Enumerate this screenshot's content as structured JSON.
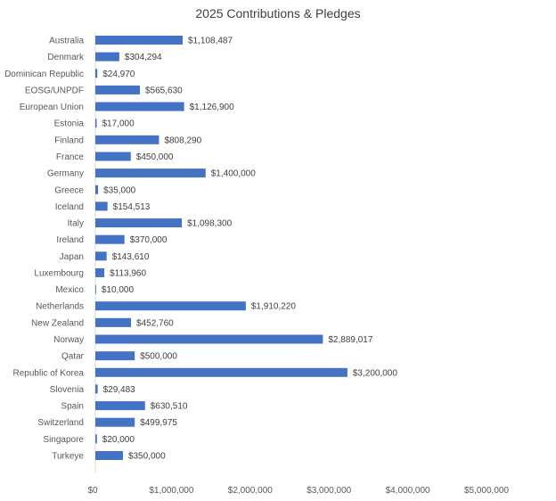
{
  "chart_data": {
    "type": "bar",
    "orientation": "horizontal",
    "title": "2025 Contributions & Pledges",
    "xlabel": "",
    "ylabel": "",
    "xlim": [
      0,
      5000000
    ],
    "x_ticks": [
      "$0",
      "$1,000,000",
      "$2,000,000",
      "$3,000,000",
      "$4,000,000",
      "$5,000,000"
    ],
    "grid": false,
    "legend": "none",
    "bar_color": "#4472C4",
    "categories": [
      "Australia",
      "Denmark",
      "Dominican Republic",
      "EOSG/UNPDF",
      "European Union",
      "Estonia",
      "Finland",
      "France",
      "Germany",
      "Greece",
      "Iceland",
      "Italy",
      "Ireland",
      "Japan",
      "Luxembourg",
      "Mexico",
      "Netherlands",
      "New Zealand",
      "Norway",
      "Qatar",
      "Republic of Korea",
      "Slovenia",
      "Spain",
      "Switzerland",
      "Singapore",
      "Turkeye"
    ],
    "values": [
      1108487,
      304294,
      24970,
      565630,
      1126900,
      17000,
      808290,
      450000,
      1400000,
      35000,
      154513,
      1098300,
      370000,
      143610,
      113960,
      10000,
      1910220,
      452760,
      2889017,
      500000,
      3200000,
      29483,
      630510,
      499975,
      20000,
      350000
    ],
    "data_labels": [
      "$1,108,487",
      "$304,294",
      "$24,970",
      "$565,630",
      "$1,126,900",
      "$17,000",
      "$808,290",
      "$450,000",
      "$1,400,000",
      "$35,000",
      "$154,513",
      "$1,098,300",
      "$370,000",
      "$143,610",
      "$113,960",
      "$10,000",
      "$1,910,220",
      "$452,760",
      "$2,889,017",
      "$500,000",
      "$3,200,000",
      "$29,483",
      "$630,510",
      "$499,975",
      "$20,000",
      "$350,000"
    ]
  }
}
